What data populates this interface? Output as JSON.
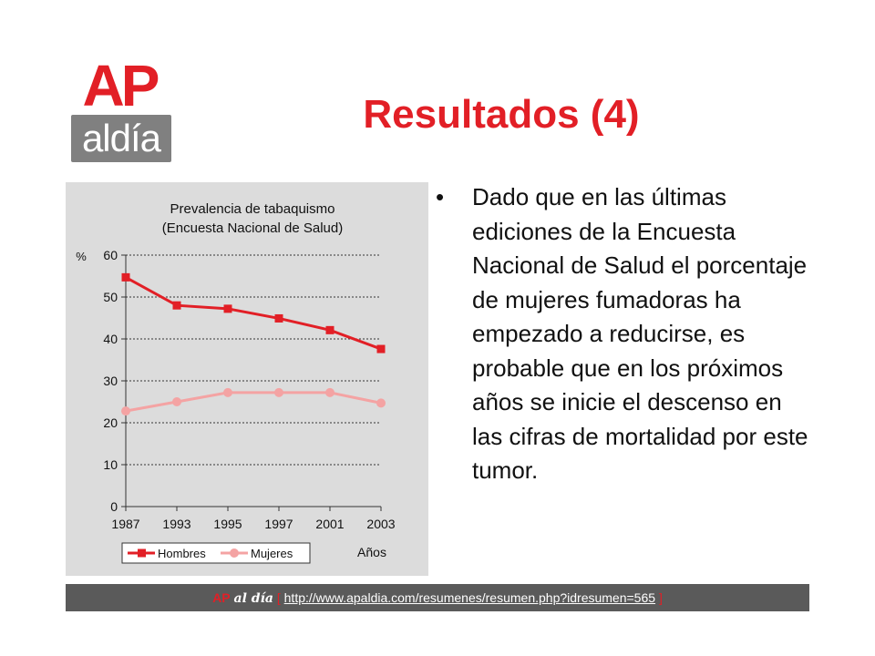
{
  "logo": {
    "top_text": "AP",
    "bottom_text": "aldía"
  },
  "slide": {
    "title": "Resultados (4)"
  },
  "bullet": {
    "symbol": "•",
    "text": "Dado que en las últimas ediciones de la Encuesta Nacional de Salud el porcentaje de mujeres fumadoras ha empezado a reducirse, es probable que en los próximos años se inicie el descenso en las cifras de mortalidad por este tumor."
  },
  "footer": {
    "ap": "AP",
    "brand": "al día",
    "open_bracket": "[",
    "url": "http://www.apaldia.com/resumenes/resumen.php?idresumen=565",
    "close_bracket": "]"
  },
  "chart_data": {
    "type": "line",
    "title": "Prevalencia de tabaquismo",
    "subtitle": "(Encuesta Nacional de Salud)",
    "ylabel": "%",
    "xlabel": "Años",
    "categories": [
      "1987",
      "1993",
      "1995",
      "1997",
      "2001",
      "2003"
    ],
    "ylim": [
      0,
      60
    ],
    "yticks": [
      0,
      10,
      20,
      30,
      40,
      50,
      60
    ],
    "grid": true,
    "legend_position": "bottom",
    "series": [
      {
        "name": "Hombres",
        "values": [
          54.7,
          48.0,
          47.2,
          44.9,
          42.1,
          37.6
        ],
        "color": "#e21f26",
        "marker": "square"
      },
      {
        "name": "Mujeres",
        "values": [
          22.8,
          25.0,
          27.2,
          27.2,
          27.2,
          24.7
        ],
        "color": "#f4a3a3",
        "marker": "circle"
      }
    ]
  }
}
